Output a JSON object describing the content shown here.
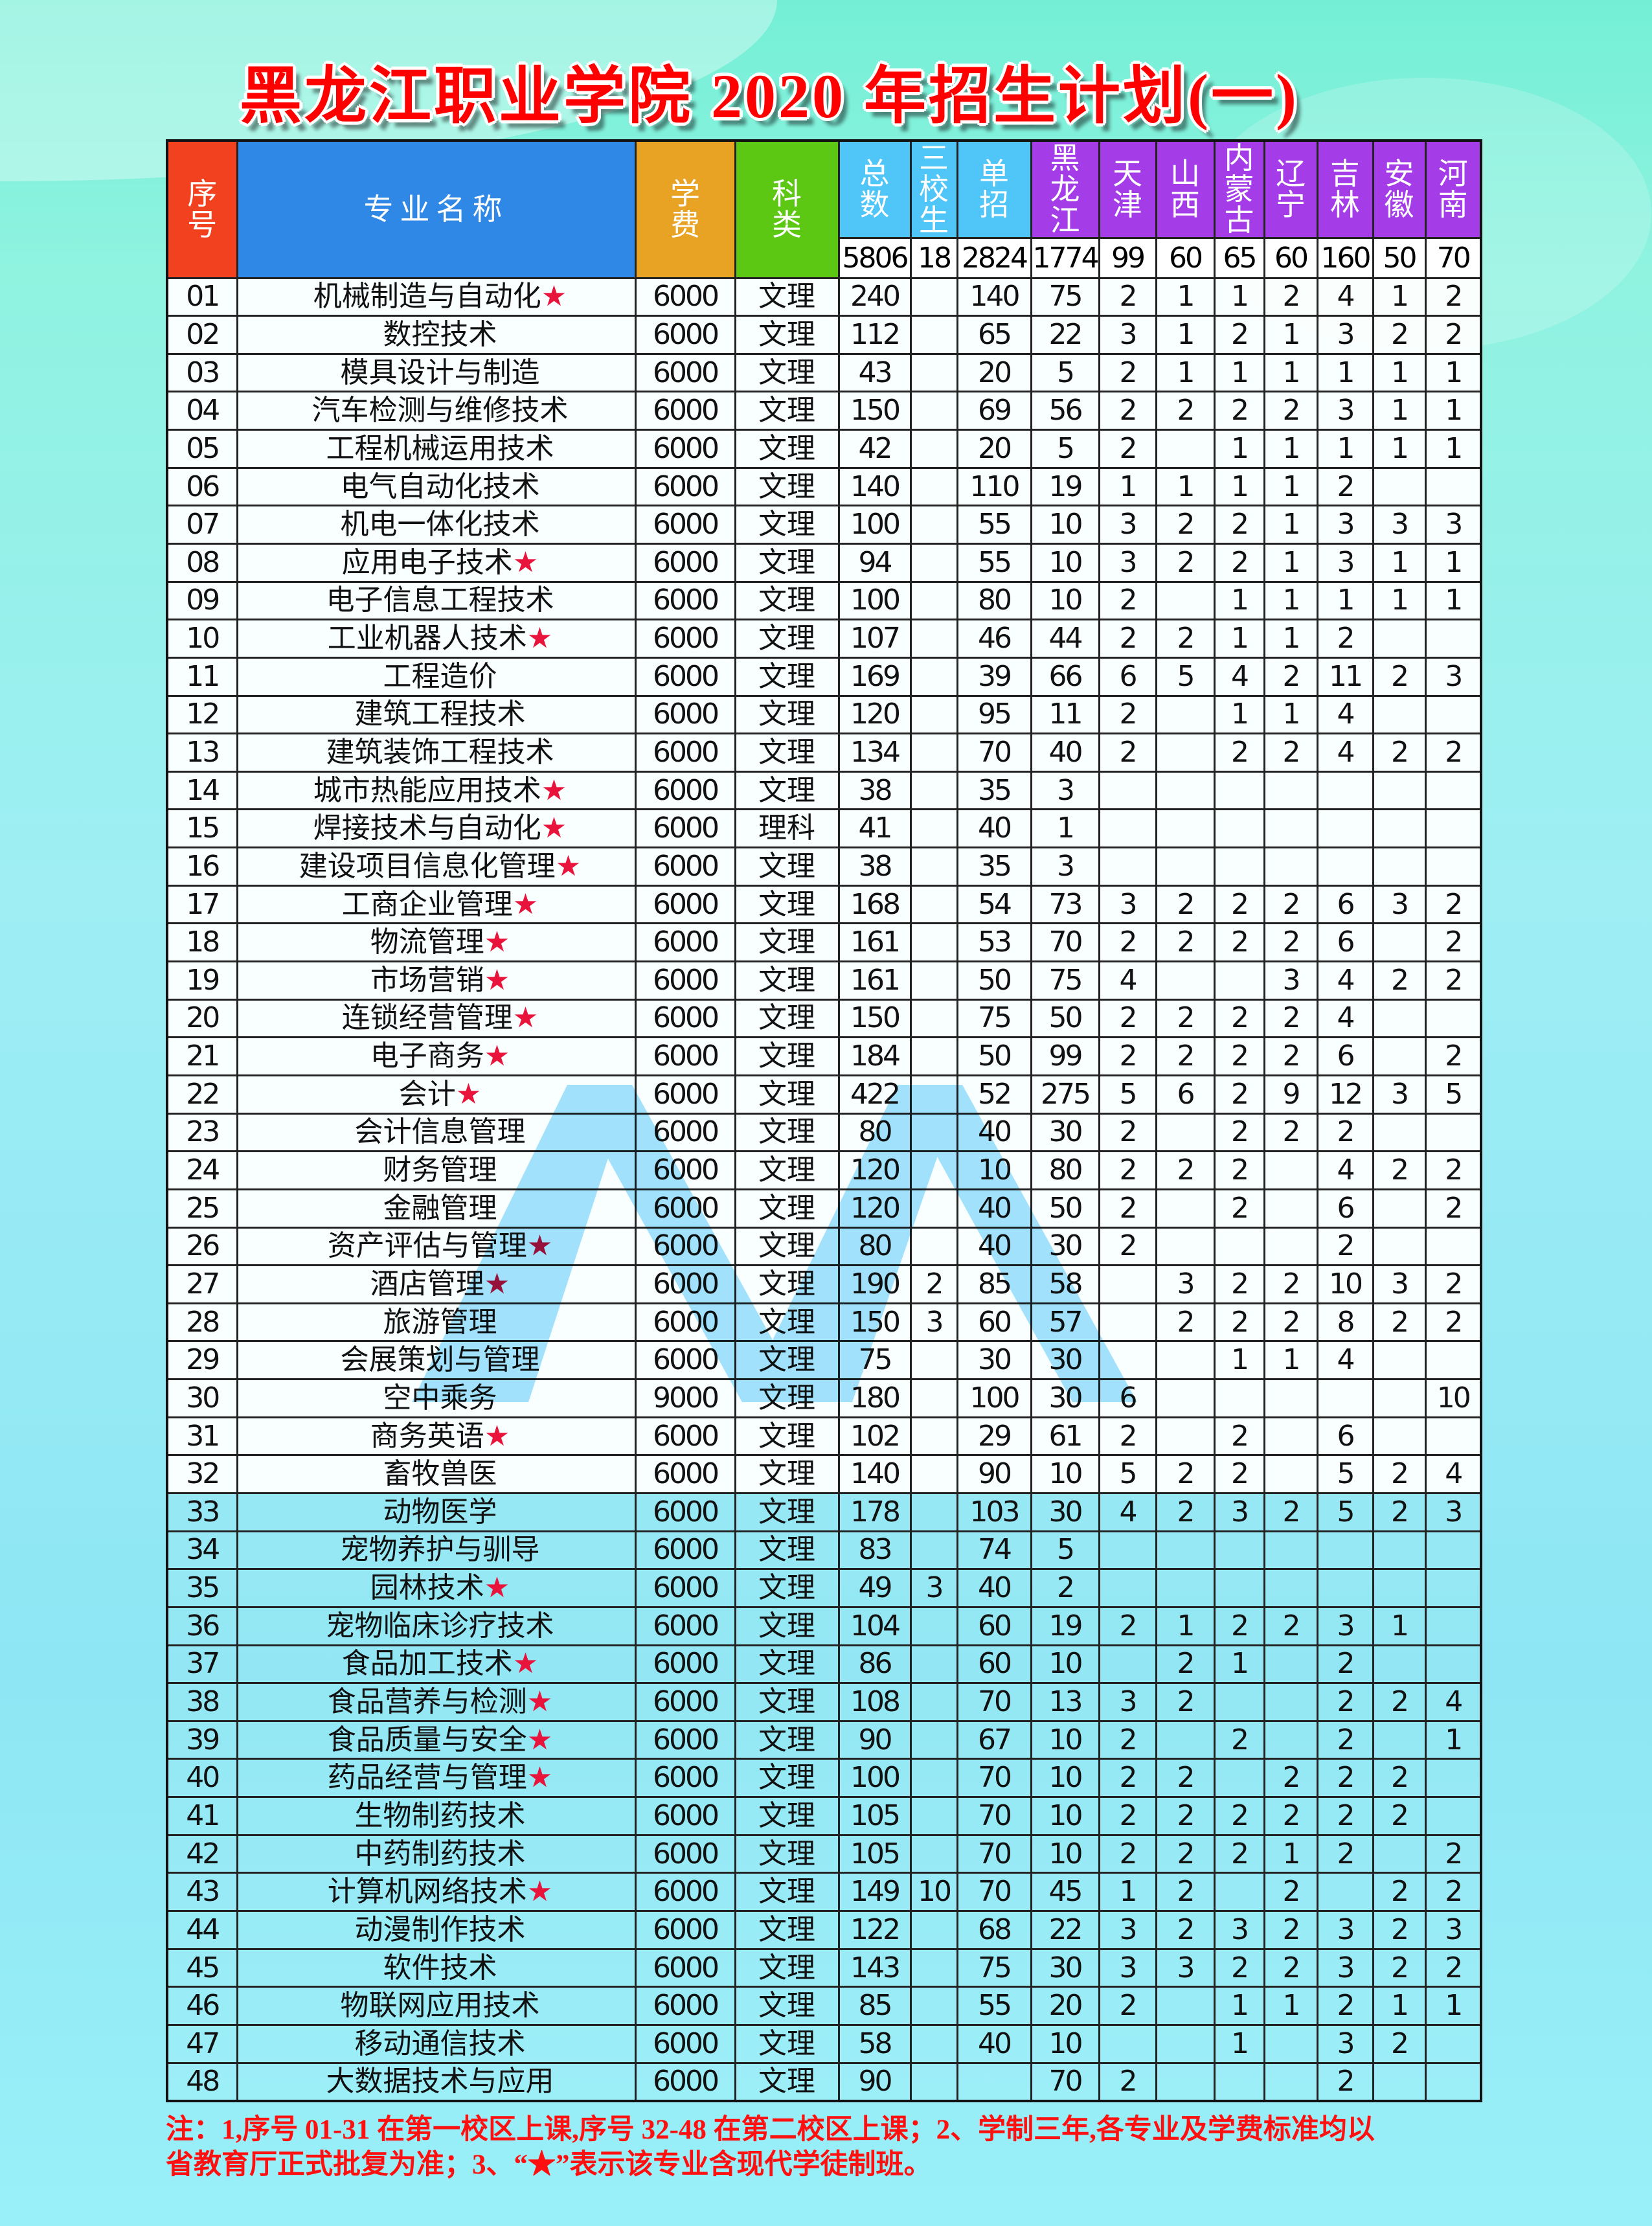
{
  "title": "黑龙江职业学院 2020 年招生计划(一)",
  "colors": {
    "seq_header": "#f2411e",
    "name_header": "#2f87e6",
    "fee_header": "#e9a324",
    "type_header": "#5cc814",
    "count_header": "#4fc5f8",
    "province_header": "#a43de8",
    "star": "#e8143c",
    "note": "#ff1010"
  },
  "headers": {
    "seq": "序\n号",
    "name": "专业名称",
    "fee": "学\n费",
    "type": "科\n类",
    "counts": [
      "总\n数",
      "三\n校\n生",
      "单\n招",
      "黑\n龙\n江",
      "天\n津",
      "山\n西",
      "内\n蒙\n古",
      "辽\n宁",
      "吉\n林",
      "安\n徽",
      "河\n南"
    ]
  },
  "totals": [
    "5806",
    "18",
    "2824",
    "1774",
    "99",
    "60",
    "65",
    "60",
    "160",
    "50",
    "70"
  ],
  "rows": [
    {
      "no": "01",
      "name": "机械制造与自动化",
      "star": "★",
      "cells": [
        "6000",
        "文理",
        "240",
        "",
        "140",
        "75",
        "2",
        "1",
        "1",
        "2",
        "4",
        "1",
        "2"
      ]
    },
    {
      "no": "02",
      "name": "数控技术",
      "star": "",
      "cells": [
        "6000",
        "文理",
        "112",
        "",
        "65",
        "22",
        "3",
        "1",
        "2",
        "1",
        "3",
        "2",
        "2"
      ]
    },
    {
      "no": "03",
      "name": "模具设计与制造",
      "star": "",
      "cells": [
        "6000",
        "文理",
        "43",
        "",
        "20",
        "5",
        "2",
        "1",
        "1",
        "1",
        "1",
        "1",
        "1"
      ]
    },
    {
      "no": "04",
      "name": "汽车检测与维修技术",
      "star": "",
      "cells": [
        "6000",
        "文理",
        "150",
        "",
        "69",
        "56",
        "2",
        "2",
        "2",
        "2",
        "3",
        "1",
        "1"
      ]
    },
    {
      "no": "05",
      "name": "工程机械运用技术",
      "star": "",
      "cells": [
        "6000",
        "文理",
        "42",
        "",
        "20",
        "5",
        "2",
        "",
        "1",
        "1",
        "1",
        "1",
        "1"
      ]
    },
    {
      "no": "06",
      "name": "电气自动化技术",
      "star": "",
      "cells": [
        "6000",
        "文理",
        "140",
        "",
        "110",
        "19",
        "1",
        "1",
        "1",
        "1",
        "2",
        "",
        ""
      ]
    },
    {
      "no": "07",
      "name": "机电一体化技术",
      "star": "",
      "cells": [
        "6000",
        "文理",
        "100",
        "",
        "55",
        "10",
        "3",
        "2",
        "2",
        "1",
        "3",
        "3",
        "3"
      ]
    },
    {
      "no": "08",
      "name": "应用电子技术",
      "star": "★",
      "cells": [
        "6000",
        "文理",
        "94",
        "",
        "55",
        "10",
        "3",
        "2",
        "2",
        "1",
        "3",
        "1",
        "1"
      ]
    },
    {
      "no": "09",
      "name": "电子信息工程技术",
      "star": "",
      "cells": [
        "6000",
        "文理",
        "100",
        "",
        "80",
        "10",
        "2",
        "",
        "1",
        "1",
        "1",
        "1",
        "1"
      ]
    },
    {
      "no": "10",
      "name": "工业机器人技术",
      "star": "★",
      "cells": [
        "6000",
        "文理",
        "107",
        "",
        "46",
        "44",
        "2",
        "2",
        "1",
        "1",
        "2",
        "",
        ""
      ]
    },
    {
      "no": "11",
      "name": "工程造价",
      "star": "",
      "cells": [
        "6000",
        "文理",
        "169",
        "",
        "39",
        "66",
        "6",
        "5",
        "4",
        "2",
        "11",
        "2",
        "3"
      ]
    },
    {
      "no": "12",
      "name": "建筑工程技术",
      "star": "",
      "cells": [
        "6000",
        "文理",
        "120",
        "",
        "95",
        "11",
        "2",
        "",
        "1",
        "1",
        "4",
        "",
        ""
      ]
    },
    {
      "no": "13",
      "name": "建筑装饰工程技术",
      "star": "",
      "cells": [
        "6000",
        "文理",
        "134",
        "",
        "70",
        "40",
        "2",
        "",
        "2",
        "2",
        "4",
        "2",
        "2"
      ]
    },
    {
      "no": "14",
      "name": "城市热能应用技术",
      "star": "★",
      "cells": [
        "6000",
        "文理",
        "38",
        "",
        "35",
        "3",
        "",
        "",
        "",
        "",
        "",
        "",
        ""
      ]
    },
    {
      "no": "15",
      "name": "焊接技术与自动化",
      "star": "★",
      "cells": [
        "6000",
        "理科",
        "41",
        "",
        "40",
        "1",
        "",
        "",
        "",
        "",
        "",
        "",
        ""
      ]
    },
    {
      "no": "16",
      "name": "建设项目信息化管理",
      "star": "★",
      "cells": [
        "6000",
        "文理",
        "38",
        "",
        "35",
        "3",
        "",
        "",
        "",
        "",
        "",
        "",
        ""
      ]
    },
    {
      "no": "17",
      "name": "工商企业管理",
      "star": "★",
      "cells": [
        "6000",
        "文理",
        "168",
        "",
        "54",
        "73",
        "3",
        "2",
        "2",
        "2",
        "6",
        "3",
        "2"
      ]
    },
    {
      "no": "18",
      "name": "物流管理",
      "star": "★",
      "cells": [
        "6000",
        "文理",
        "161",
        "",
        "53",
        "70",
        "2",
        "2",
        "2",
        "2",
        "6",
        "",
        "2"
      ]
    },
    {
      "no": "19",
      "name": "市场营销",
      "star": "★",
      "cells": [
        "6000",
        "文理",
        "161",
        "",
        "50",
        "75",
        "4",
        "",
        "",
        "3",
        "4",
        "2",
        "2"
      ]
    },
    {
      "no": "20",
      "name": "连锁经营管理",
      "star": "★",
      "cells": [
        "6000",
        "文理",
        "150",
        "",
        "75",
        "50",
        "2",
        "2",
        "2",
        "2",
        "4",
        "",
        ""
      ]
    },
    {
      "no": "21",
      "name": "电子商务",
      "star": "★",
      "cells": [
        "6000",
        "文理",
        "184",
        "",
        "50",
        "99",
        "2",
        "2",
        "2",
        "2",
        "6",
        "",
        "2"
      ]
    },
    {
      "no": "22",
      "name": "会计",
      "star": "★",
      "cells": [
        "6000",
        "文理",
        "422",
        "",
        "52",
        "275",
        "5",
        "6",
        "2",
        "9",
        "12",
        "3",
        "5"
      ]
    },
    {
      "no": "23",
      "name": "会计信息管理",
      "star": "",
      "cells": [
        "6000",
        "文理",
        "80",
        "",
        "40",
        "30",
        "2",
        "",
        "2",
        "2",
        "2",
        "",
        ""
      ]
    },
    {
      "no": "24",
      "name": "财务管理",
      "star": "",
      "cells": [
        "6000",
        "文理",
        "120",
        "",
        "10",
        "80",
        "2",
        "2",
        "2",
        "",
        "4",
        "2",
        "2"
      ]
    },
    {
      "no": "25",
      "name": "金融管理",
      "star": "",
      "cells": [
        "6000",
        "文理",
        "120",
        "",
        "40",
        "50",
        "2",
        "",
        "2",
        "",
        "6",
        "",
        "2"
      ]
    },
    {
      "no": "26",
      "name": "资产评估与管理",
      "star": "★",
      "cells": [
        "6000",
        "文理",
        "80",
        "",
        "40",
        "30",
        "2",
        "",
        "",
        "",
        "2",
        "",
        ""
      ]
    },
    {
      "no": "27",
      "name": "酒店管理",
      "star": "★",
      "cells": [
        "6000",
        "文理",
        "190",
        "2",
        "85",
        "58",
        "",
        "3",
        "2",
        "2",
        "10",
        "3",
        "2"
      ]
    },
    {
      "no": "28",
      "name": "旅游管理",
      "star": "",
      "cells": [
        "6000",
        "文理",
        "150",
        "3",
        "60",
        "57",
        "",
        "2",
        "2",
        "2",
        "8",
        "2",
        "2"
      ]
    },
    {
      "no": "29",
      "name": "会展策划与管理",
      "star": "",
      "cells": [
        "6000",
        "文理",
        "75",
        "",
        "30",
        "30",
        "",
        "",
        "1",
        "1",
        "4",
        "",
        ""
      ]
    },
    {
      "no": "30",
      "name": "空中乘务",
      "star": "",
      "cells": [
        "9000",
        "文理",
        "180",
        "",
        "100",
        "30",
        "6",
        "",
        "",
        "",
        "",
        "",
        "10"
      ]
    },
    {
      "no": "31",
      "name": "商务英语",
      "star": "★",
      "cells": [
        "6000",
        "文理",
        "102",
        "",
        "29",
        "61",
        "2",
        "",
        "2",
        "",
        "6",
        "",
        ""
      ]
    },
    {
      "no": "32",
      "name": "畜牧兽医",
      "star": "",
      "cells": [
        "6000",
        "文理",
        "140",
        "",
        "90",
        "10",
        "5",
        "2",
        "2",
        "",
        "5",
        "2",
        "4"
      ]
    },
    {
      "no": "33",
      "name": "动物医学",
      "star": "",
      "cells": [
        "6000",
        "文理",
        "178",
        "",
        "103",
        "30",
        "4",
        "2",
        "3",
        "2",
        "5",
        "2",
        "3"
      ]
    },
    {
      "no": "34",
      "name": "宠物养护与驯导",
      "star": "",
      "cells": [
        "6000",
        "文理",
        "83",
        "",
        "74",
        "5",
        "",
        "",
        "",
        "",
        "",
        "",
        ""
      ]
    },
    {
      "no": "35",
      "name": "园林技术",
      "star": "★",
      "cells": [
        "6000",
        "文理",
        "49",
        "3",
        "40",
        "2",
        "",
        "",
        "",
        "",
        "",
        "",
        ""
      ]
    },
    {
      "no": "36",
      "name": "宠物临床诊疗技术",
      "star": "",
      "cells": [
        "6000",
        "文理",
        "104",
        "",
        "60",
        "19",
        "2",
        "1",
        "2",
        "2",
        "3",
        "1",
        ""
      ]
    },
    {
      "no": "37",
      "name": "食品加工技术",
      "star": "★",
      "cells": [
        "6000",
        "文理",
        "86",
        "",
        "60",
        "10",
        "",
        "2",
        "1",
        "",
        "2",
        "",
        ""
      ]
    },
    {
      "no": "38",
      "name": "食品营养与检测",
      "star": "★",
      "cells": [
        "6000",
        "文理",
        "108",
        "",
        "70",
        "13",
        "3",
        "2",
        "",
        "",
        "2",
        "2",
        "4"
      ]
    },
    {
      "no": "39",
      "name": "食品质量与安全",
      "star": "★",
      "cells": [
        "6000",
        "文理",
        "90",
        "",
        "67",
        "10",
        "2",
        "",
        "2",
        "",
        "2",
        "",
        "1"
      ]
    },
    {
      "no": "40",
      "name": "药品经营与管理",
      "star": "★",
      "cells": [
        "6000",
        "文理",
        "100",
        "",
        "70",
        "10",
        "2",
        "2",
        "",
        "2",
        "2",
        "2",
        ""
      ]
    },
    {
      "no": "41",
      "name": "生物制药技术",
      "star": "",
      "cells": [
        "6000",
        "文理",
        "105",
        "",
        "70",
        "10",
        "2",
        "2",
        "2",
        "2",
        "2",
        "2",
        ""
      ]
    },
    {
      "no": "42",
      "name": "中药制药技术",
      "star": "",
      "cells": [
        "6000",
        "文理",
        "105",
        "",
        "70",
        "10",
        "2",
        "2",
        "2",
        "1",
        "2",
        "",
        "2"
      ]
    },
    {
      "no": "43",
      "name": "计算机网络技术",
      "star": "★",
      "cells": [
        "6000",
        "文理",
        "149",
        "10",
        "70",
        "45",
        "1",
        "2",
        "",
        "2",
        "",
        "2",
        "2"
      ]
    },
    {
      "no": "44",
      "name": "动漫制作技术",
      "star": "",
      "cells": [
        "6000",
        "文理",
        "122",
        "",
        "68",
        "22",
        "3",
        "2",
        "3",
        "2",
        "3",
        "2",
        "3"
      ]
    },
    {
      "no": "45",
      "name": "软件技术",
      "star": "",
      "cells": [
        "6000",
        "文理",
        "143",
        "",
        "75",
        "30",
        "3",
        "3",
        "2",
        "2",
        "3",
        "2",
        "2"
      ]
    },
    {
      "no": "46",
      "name": "物联网应用技术",
      "star": "",
      "cells": [
        "6000",
        "文理",
        "85",
        "",
        "55",
        "20",
        "2",
        "",
        "1",
        "1",
        "2",
        "1",
        "1"
      ]
    },
    {
      "no": "47",
      "name": "移动通信技术",
      "star": "",
      "cells": [
        "6000",
        "文理",
        "58",
        "",
        "40",
        "10",
        "",
        "",
        "1",
        "",
        "3",
        "2",
        ""
      ]
    },
    {
      "no": "48",
      "name": "大数据技术与应用",
      "star": "",
      "cells": [
        "6000",
        "文理",
        "90",
        "",
        "",
        "70",
        "2",
        "",
        "",
        "",
        "2",
        "",
        ""
      ]
    }
  ],
  "notes": [
    "注：1,序号 01-31 在第一校区上课,序号 32-48 在第二校区上课；2、学制三年,各专业及学费标准均以",
    "省教育厅正式批复为准；3、“★”表示该专业含现代学徒制班。"
  ]
}
